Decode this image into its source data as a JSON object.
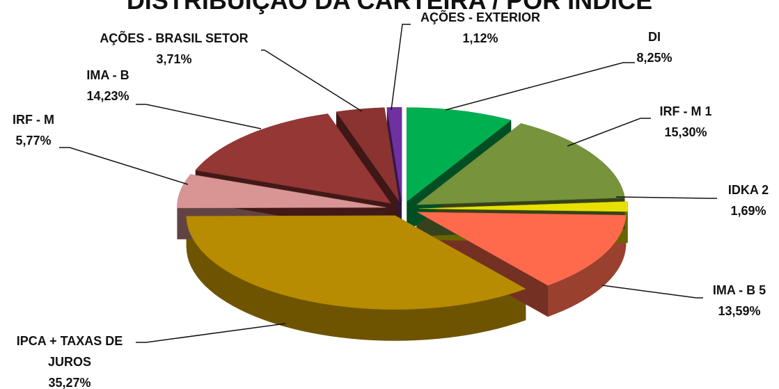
{
  "chart_data": {
    "type": "pie3d",
    "title": "DISTRIBUIÇÃO DA CARTEIRA / POR ÍNDICE",
    "categories": [
      "DI",
      "IRF - M 1",
      "IDKA 2",
      "IMA - B 5",
      "IPCA + TAXAS DE JUROS",
      "IRF - M",
      "IMA - B",
      "AÇÕES - BRASIL SETOR",
      "AÇÕES - EXTERIOR"
    ],
    "values": [
      8.25,
      15.3,
      1.69,
      13.59,
      35.27,
      5.77,
      14.23,
      3.71,
      1.12
    ],
    "value_labels": [
      "8,25%",
      "15,30%",
      "1,69%",
      "13,59%",
      "35,27%",
      "5,77%",
      "14,23%",
      "3,71%",
      "1,12%"
    ],
    "colors": [
      "#00b050",
      "#77933c",
      "#e8e000",
      "#ff6a4d",
      "#b88c00",
      "#d99594",
      "#953735",
      "#8a3330",
      "#7030a0"
    ]
  }
}
